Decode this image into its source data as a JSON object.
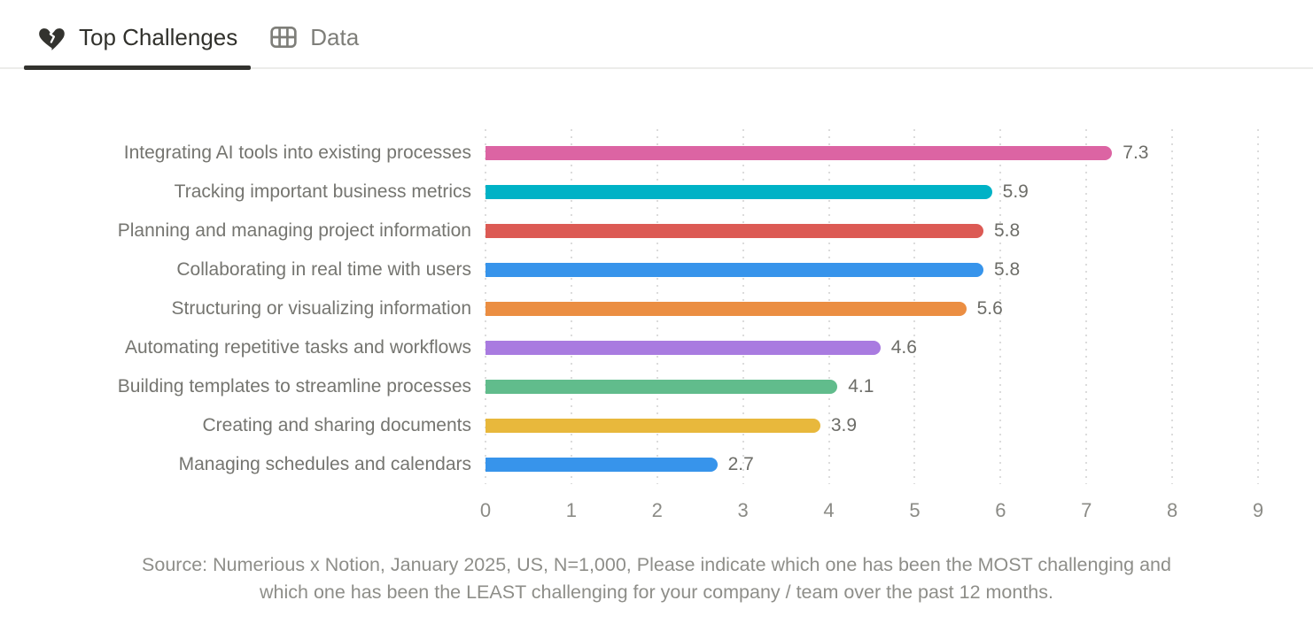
{
  "tabs": [
    {
      "label": "Top Challenges",
      "icon": "broken-heart",
      "active": true
    },
    {
      "label": "Data",
      "icon": "table",
      "active": false
    }
  ],
  "chart_data": {
    "type": "bar",
    "orientation": "horizontal",
    "title": "",
    "xlabel": "",
    "ylabel": "",
    "categories": [
      "Integrating AI tools into existing processes",
      "Tracking important business metrics",
      "Planning and managing project information",
      "Collaborating in real time with users",
      "Structuring or visualizing information",
      "Automating repetitive tasks and workflows",
      "Building templates to streamline processes",
      "Creating and sharing documents",
      "Managing schedules and calendars"
    ],
    "values": [
      7.3,
      5.9,
      5.8,
      5.8,
      5.6,
      4.6,
      4.1,
      3.9,
      2.7
    ],
    "colors": [
      "#dc64a3",
      "#00b2c6",
      "#dc5a54",
      "#3794eb",
      "#eb8e42",
      "#a97be0",
      "#61bc8c",
      "#e8b83c",
      "#3794eb"
    ],
    "xlim": [
      0,
      9
    ],
    "xticks": [
      0,
      1,
      2,
      3,
      4,
      5,
      6,
      7,
      8,
      9
    ],
    "grid": "dotted-vertical",
    "legend": "none"
  },
  "source": {
    "lines": [
      "Source: Numerious x Notion, January 2025, US, N=1,000, Please indicate which one has been the MOST challenging and",
      "which one has been the LEAST challenging for your company /  team over the past 12 months."
    ]
  }
}
